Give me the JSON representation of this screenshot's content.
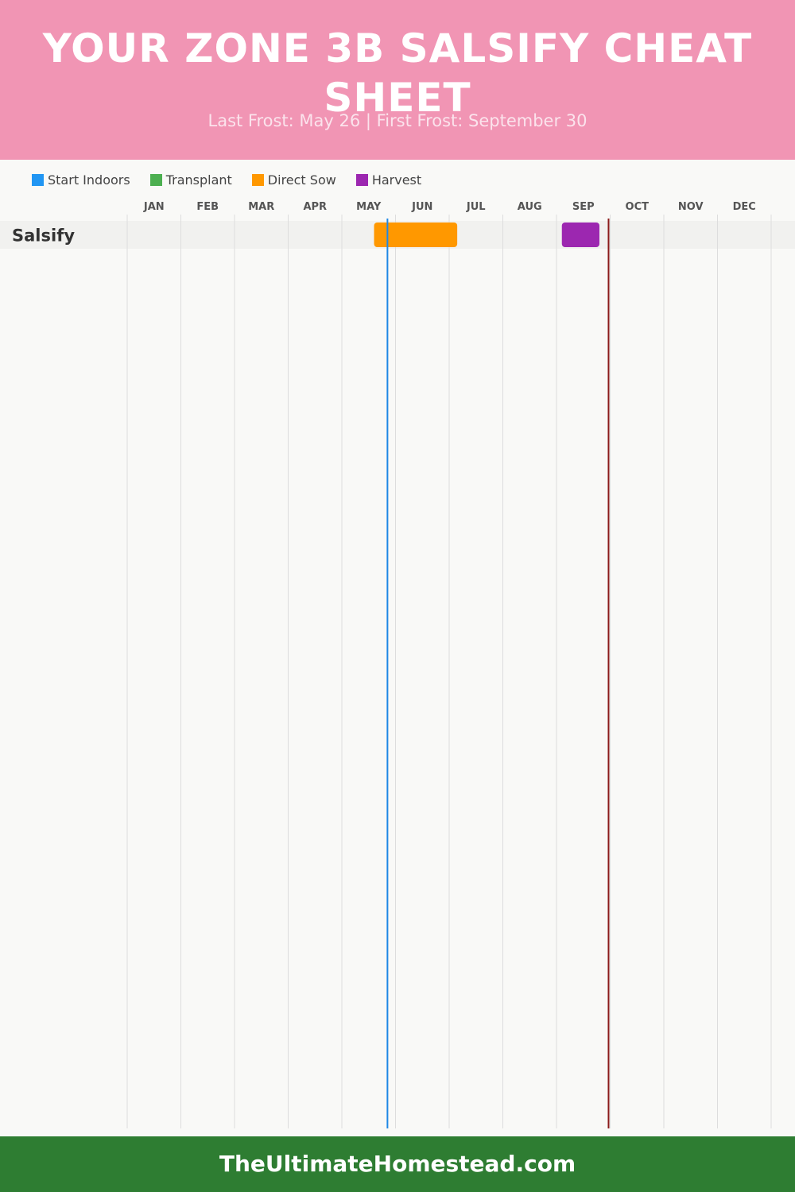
{
  "header": {
    "title": "YOUR ZONE 3B SALSIFY CHEAT SHEET",
    "subtitle": "Last Frost: May 26 | First Frost: September 30"
  },
  "colors": {
    "header_bg": "#f195b4",
    "footer_bg": "#2e7d32",
    "last_frost_line": "#1e88e5",
    "first_frost_line": "#8b1a1a"
  },
  "legend": [
    {
      "label": "Start Indoors",
      "color": "#2196f3"
    },
    {
      "label": "Transplant",
      "color": "#4caf50"
    },
    {
      "label": "Direct Sow",
      "color": "#ff9800"
    },
    {
      "label": "Harvest",
      "color": "#9c27b0"
    }
  ],
  "chart_data": {
    "type": "gantt",
    "months": [
      "JAN",
      "FEB",
      "MAR",
      "APR",
      "MAY",
      "JUN",
      "JUL",
      "AUG",
      "SEP",
      "OCT",
      "NOV",
      "DEC"
    ],
    "rows": [
      {
        "name": "Salsify",
        "bars": [
          {
            "activity": "Direct Sow",
            "start_month": 5.6,
            "end_month": 7.15,
            "color": "#ff9800"
          },
          {
            "activity": "Harvest",
            "start_month": 9.1,
            "end_month": 9.8,
            "color": "#9c27b0"
          }
        ]
      }
    ],
    "markers": [
      {
        "label": "Last Frost",
        "month": 5.85,
        "color": "#1e88e5"
      },
      {
        "label": "First Frost",
        "month": 9.97,
        "color": "#8b1a1a"
      }
    ]
  },
  "footer": {
    "text": "TheUltimateHomestead.com"
  }
}
